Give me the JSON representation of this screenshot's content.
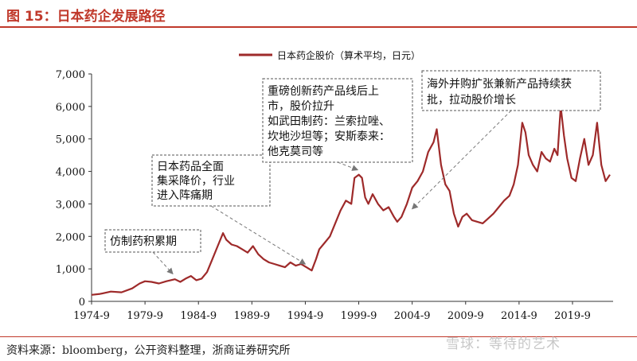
{
  "figure": {
    "title": "图 15：日本药企发展路径",
    "source": "资料来源：bloomberg，公开资料整理，浙商证券研究所",
    "watermark": "雪球：等待的艺术"
  },
  "colors": {
    "line": "#9e2a2a",
    "title": "#c0392b",
    "axis": "#333333",
    "annotation_border": "#555555",
    "arrow": "#777777"
  },
  "chart_data": {
    "type": "line",
    "title": "",
    "xlabel": "",
    "ylabel": "",
    "legend": {
      "placement": "top-center",
      "entries": [
        "日本药企股价（算术平均，日元）"
      ]
    },
    "grid": false,
    "xlim": [
      1974.7,
      2023.5
    ],
    "ylim": [
      0,
      7000
    ],
    "x_ticks": [
      {
        "label": "1974-9",
        "value": 1974.7
      },
      {
        "label": "1979-9",
        "value": 1979.7
      },
      {
        "label": "1984-9",
        "value": 1984.7
      },
      {
        "label": "1989-9",
        "value": 1989.7
      },
      {
        "label": "1994-9",
        "value": 1994.7
      },
      {
        "label": "1999-9",
        "value": 1999.7
      },
      {
        "label": "2004-9",
        "value": 2004.7
      },
      {
        "label": "2009-9",
        "value": 2009.7
      },
      {
        "label": "2014-9",
        "value": 2014.7
      },
      {
        "label": "2019-9",
        "value": 2019.7
      }
    ],
    "y_ticks": [
      {
        "label": "0",
        "value": 0
      },
      {
        "label": "1,000",
        "value": 1000
      },
      {
        "label": "2,000",
        "value": 2000
      },
      {
        "label": "3,000",
        "value": 3000
      },
      {
        "label": "4,000",
        "value": 4000
      },
      {
        "label": "5,000",
        "value": 5000
      },
      {
        "label": "6,000",
        "value": 6000
      },
      {
        "label": "7,000",
        "value": 7000
      }
    ],
    "series": [
      {
        "name": "日本药企股价（算术平均，日元）",
        "x": [
          1974.7,
          1975.5,
          1976.5,
          1977.5,
          1978.5,
          1979.2,
          1979.7,
          1980.3,
          1981.0,
          1981.7,
          1982.5,
          1983.0,
          1983.5,
          1984.0,
          1984.5,
          1985.0,
          1985.5,
          1986.0,
          1986.5,
          1987.0,
          1987.3,
          1987.8,
          1988.3,
          1988.8,
          1989.3,
          1989.8,
          1990.3,
          1990.8,
          1991.3,
          1991.8,
          1992.3,
          1992.8,
          1993.3,
          1993.8,
          1994.3,
          1994.8,
          1995.3,
          1995.7,
          1996.0,
          1996.5,
          1997.0,
          1997.5,
          1998.0,
          1998.5,
          1999.0,
          1999.3,
          1999.7,
          2000.0,
          2000.3,
          2000.6,
          2001.0,
          2001.5,
          2002.0,
          2002.5,
          2003.0,
          2003.3,
          2003.7,
          2004.2,
          2004.7,
          2005.2,
          2005.7,
          2006.2,
          2006.7,
          2007.0,
          2007.4,
          2007.8,
          2008.2,
          2008.6,
          2009.0,
          2009.4,
          2009.8,
          2010.3,
          2010.8,
          2011.3,
          2011.8,
          2012.3,
          2012.8,
          2013.3,
          2013.8,
          2014.2,
          2014.6,
          2015.0,
          2015.3,
          2015.6,
          2016.0,
          2016.4,
          2016.8,
          2017.2,
          2017.6,
          2018.0,
          2018.3,
          2018.6,
          2018.9,
          2019.2,
          2019.6,
          2020.0,
          2020.4,
          2020.8,
          2021.2,
          2021.6,
          2022.0,
          2022.4,
          2022.8,
          2023.2
        ],
        "y": [
          200,
          230,
          300,
          280,
          400,
          550,
          620,
          600,
          550,
          620,
          680,
          600,
          700,
          780,
          650,
          700,
          900,
          1300,
          1700,
          2100,
          1900,
          1750,
          1700,
          1600,
          1500,
          1700,
          1450,
          1300,
          1200,
          1150,
          1100,
          1050,
          1200,
          1100,
          1150,
          1050,
          950,
          1300,
          1600,
          1800,
          2000,
          2400,
          2800,
          3100,
          3000,
          3800,
          3900,
          3800,
          3200,
          3000,
          3300,
          3000,
          2800,
          2900,
          2600,
          2450,
          2600,
          3000,
          3500,
          3700,
          4000,
          4600,
          4900,
          5300,
          4200,
          3600,
          3400,
          2700,
          2300,
          2600,
          2700,
          2500,
          2450,
          2400,
          2550,
          2700,
          2900,
          3100,
          3250,
          3600,
          4200,
          5500,
          5200,
          4500,
          4200,
          4000,
          4600,
          4400,
          4300,
          4700,
          4500,
          6000,
          5100,
          4400,
          3800,
          3700,
          4400,
          5000,
          4200,
          4500,
          5500,
          4200,
          3700,
          3900
        ]
      }
    ],
    "annotations": [
      {
        "lines": [
          "仿制药积累期"
        ],
        "target": {
          "x": 1982.3,
          "y": 700
        }
      },
      {
        "lines": [
          "日本药品全面",
          "集采降价，行业",
          "进入阵痛期"
        ],
        "target": {
          "x": 1994.7,
          "y": 1000
        }
      },
      {
        "lines": [
          "重磅创新药产品线后上",
          "市，股价拉升",
          "如武田制药：兰索拉唑、",
          "坎地沙坦等；安斯泰来：",
          "他克莫司等"
        ],
        "target": {
          "x": 1999.6,
          "y": 3900
        }
      },
      {
        "lines": [
          "海外并购扩张兼新产品持续获",
          "批，拉动股价增长"
        ],
        "target": {
          "x": 2004.7,
          "y": 2700
        }
      }
    ]
  }
}
